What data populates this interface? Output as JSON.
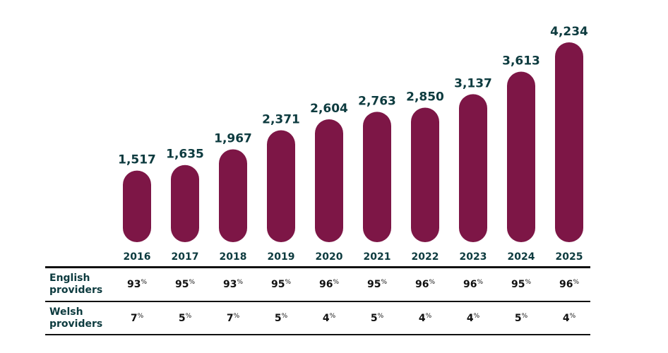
{
  "chart_data": {
    "type": "bar",
    "categories": [
      "2016",
      "2017",
      "2018",
      "2019",
      "2020",
      "2021",
      "2022",
      "2023",
      "2024",
      "2025"
    ],
    "values": [
      1517,
      1635,
      1967,
      2371,
      2604,
      2763,
      2850,
      3137,
      3613,
      4234
    ],
    "data_labels": [
      "1,517",
      "1,635",
      "1,967",
      "2,371",
      "2,604",
      "2,763",
      "2,850",
      "3,137",
      "3,613",
      "4,234"
    ],
    "bar_color": "#7d1646",
    "text_color": "#0d3b3f",
    "grid": false,
    "table": {
      "rows": [
        {
          "label_line1": "English",
          "label_line2": "providers",
          "values": [
            "93",
            "95",
            "93",
            "95",
            "96",
            "95",
            "96",
            "96",
            "95",
            "96"
          ]
        },
        {
          "label_line1": "Welsh",
          "label_line2": "providers",
          "values": [
            "7",
            "5",
            "7",
            "5",
            "4",
            "5",
            "4",
            "4",
            "5",
            "4"
          ]
        }
      ],
      "unit": "%"
    }
  }
}
